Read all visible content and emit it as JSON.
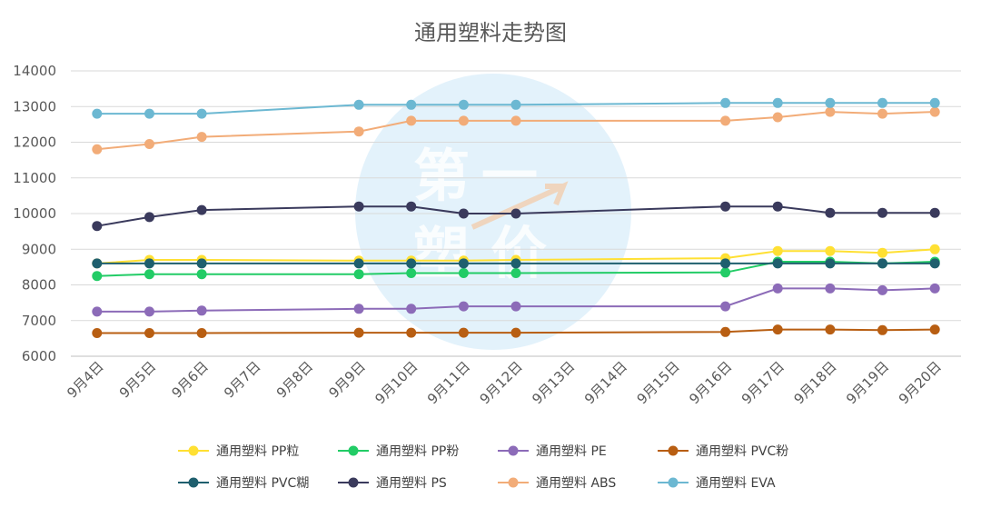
{
  "chart_data": {
    "type": "line",
    "title": "通用塑料走势图",
    "xlabel": "",
    "ylabel": "",
    "categories": [
      "9月4日",
      "9月5日",
      "9月6日",
      "9月7日",
      "9月8日",
      "9月9日",
      "9月10日",
      "9月11日",
      "9月12日",
      "9月13日",
      "9月14日",
      "9月15日",
      "9月16日",
      "9月17日",
      "9月18日",
      "9月19日",
      "9月20日"
    ],
    "ylim": [
      6000,
      14000
    ],
    "yticks": [
      "6000",
      "7000",
      "8000",
      "9000",
      "10000",
      "11000",
      "12000",
      "13000",
      "14000"
    ],
    "grid": "horizontal",
    "legend_position": "bottom",
    "series": [
      {
        "name": "通用塑料 PP粒",
        "color": "#ffe033",
        "values": [
          8600,
          8700,
          8700,
          null,
          null,
          8680,
          8680,
          8680,
          8700,
          null,
          null,
          null,
          8750,
          8950,
          8950,
          8900,
          9000
        ]
      },
      {
        "name": "通用塑料 PP粉",
        "color": "#22cc66",
        "values": [
          8250,
          8300,
          8300,
          null,
          null,
          8300,
          8330,
          8330,
          8330,
          null,
          null,
          null,
          8350,
          8650,
          8650,
          8600,
          8650
        ]
      },
      {
        "name": "通用塑料 PE",
        "color": "#8c6bb8",
        "values": [
          7250,
          7250,
          7280,
          null,
          null,
          7330,
          7330,
          7400,
          7400,
          null,
          null,
          null,
          7400,
          7900,
          7900,
          7850,
          7900
        ]
      },
      {
        "name": "通用塑料 PVC粉",
        "color": "#b85e12",
        "values": [
          6650,
          6650,
          6650,
          null,
          null,
          6660,
          6660,
          6660,
          6660,
          null,
          null,
          null,
          6680,
          6750,
          6750,
          6730,
          6750
        ]
      },
      {
        "name": "通用塑料 PVC糊",
        "color": "#1f5f6e",
        "values": [
          8600,
          8600,
          8600,
          null,
          null,
          8600,
          8600,
          8600,
          8600,
          null,
          null,
          null,
          8600,
          8600,
          8600,
          8600,
          8600
        ]
      },
      {
        "name": "通用塑料 PS",
        "color": "#3a3a5c",
        "values": [
          9650,
          9900,
          10100,
          null,
          null,
          10200,
          10200,
          10000,
          10000,
          null,
          null,
          null,
          10200,
          10200,
          10020,
          10020,
          10020
        ]
      },
      {
        "name": "通用塑料 ABS",
        "color": "#f2ac78",
        "values": [
          11800,
          11950,
          12150,
          null,
          null,
          12300,
          12600,
          12600,
          12600,
          null,
          null,
          null,
          12600,
          12700,
          12850,
          12800,
          12850
        ]
      },
      {
        "name": "通用塑料 EVA",
        "color": "#6cb8d2",
        "values": [
          12800,
          12800,
          12800,
          null,
          null,
          13050,
          13050,
          13050,
          13050,
          null,
          null,
          null,
          13100,
          13100,
          13100,
          13100,
          13100
        ]
      }
    ]
  }
}
